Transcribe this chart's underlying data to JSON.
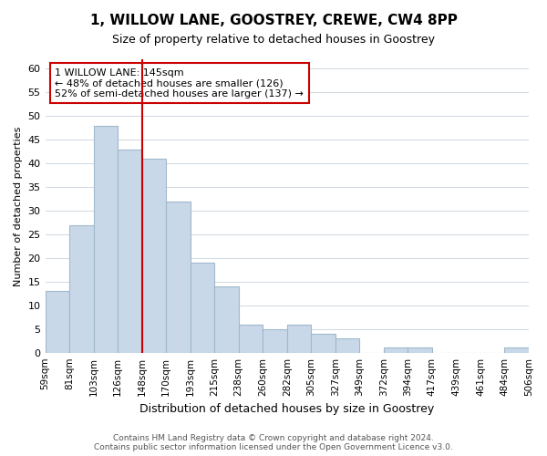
{
  "title": "1, WILLOW LANE, GOOSTREY, CREWE, CW4 8PP",
  "subtitle": "Size of property relative to detached houses in Goostrey",
  "xlabel": "Distribution of detached houses by size in Goostrey",
  "ylabel": "Number of detached properties",
  "bin_labels": [
    "59sqm",
    "81sqm",
    "103sqm",
    "126sqm",
    "148sqm",
    "170sqm",
    "193sqm",
    "215sqm",
    "238sqm",
    "260sqm",
    "282sqm",
    "305sqm",
    "327sqm",
    "349sqm",
    "372sqm",
    "394sqm",
    "417sqm",
    "439sqm",
    "461sqm",
    "484sqm",
    "506sqm"
  ],
  "bar_values": [
    13,
    27,
    48,
    43,
    41,
    32,
    19,
    14,
    6,
    5,
    6,
    4,
    3,
    0,
    1,
    1,
    0,
    0,
    0,
    1
  ],
  "bar_color": "#c8d8e8",
  "bar_edge_color": "#a0b8cc",
  "vline_x_index": 4,
  "vline_color": "#cc0000",
  "ylim": [
    0,
    62
  ],
  "yticks": [
    0,
    5,
    10,
    15,
    20,
    25,
    30,
    35,
    40,
    45,
    50,
    55,
    60
  ],
  "annotation_box_text": "1 WILLOW LANE: 145sqm\n← 48% of detached houses are smaller (126)\n52% of semi-detached houses are larger (137) →",
  "annotation_box_color": "#cc0000",
  "footer_line1": "Contains HM Land Registry data © Crown copyright and database right 2024.",
  "footer_line2": "Contains public sector information licensed under the Open Government Licence v3.0.",
  "background_color": "#ffffff",
  "grid_color": "#d0d8e0"
}
